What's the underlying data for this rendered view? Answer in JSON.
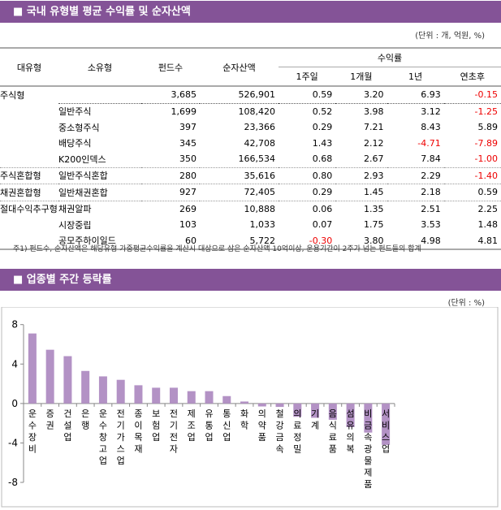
{
  "section1": {
    "title": "■ 국내 유형별 평균 수익률 및 순자산액",
    "unit": "(단위 : 개, 억원, %)",
    "headers": {
      "large": "대유형",
      "small": "소유형",
      "funds": "펀드수",
      "assets": "순자산액",
      "returns": "수익률",
      "w1": "1주일",
      "m1": "1개월",
      "y1": "1년",
      "ytd": "연초후"
    },
    "rows": [
      {
        "large": "주식형",
        "small": "",
        "funds": "3,685",
        "assets": "526,901",
        "w1": "0.59",
        "m1": "3.20",
        "y1": "6.93",
        "ytd": "-0.15"
      },
      {
        "large": "",
        "small": "일반주식",
        "funds": "1,699",
        "assets": "108,420",
        "w1": "0.52",
        "m1": "3.98",
        "y1": "3.12",
        "ytd": "-1.25"
      },
      {
        "large": "",
        "small": "중소형주식",
        "funds": "397",
        "assets": "23,366",
        "w1": "0.29",
        "m1": "7.21",
        "y1": "8.43",
        "ytd": "5.89"
      },
      {
        "large": "",
        "small": "배당주식",
        "funds": "345",
        "assets": "42,708",
        "w1": "1.43",
        "m1": "2.12",
        "y1": "-4.71",
        "ytd": "-7.89"
      },
      {
        "large": "",
        "small": "K200인덱스",
        "funds": "350",
        "assets": "166,534",
        "w1": "0.68",
        "m1": "2.67",
        "y1": "7.84",
        "ytd": "-1.00"
      },
      {
        "large": "주식혼합형",
        "small": "일반주식혼합",
        "funds": "280",
        "assets": "35,616",
        "w1": "0.80",
        "m1": "2.93",
        "y1": "2.29",
        "ytd": "-1.40"
      },
      {
        "large": "채권혼합형",
        "small": "일반채권혼합",
        "funds": "927",
        "assets": "72,405",
        "w1": "0.29",
        "m1": "1.45",
        "y1": "2.18",
        "ytd": "0.59"
      },
      {
        "large": "절대수익추구형",
        "small": "채권알파",
        "funds": "269",
        "assets": "10,888",
        "w1": "0.06",
        "m1": "1.35",
        "y1": "2.51",
        "ytd": "2.25"
      },
      {
        "large": "",
        "small": "시장중립",
        "funds": "103",
        "assets": "1,033",
        "w1": "0.07",
        "m1": "1.75",
        "y1": "3.53",
        "ytd": "1.48"
      },
      {
        "large": "",
        "small": "공모주하이일드",
        "funds": "60",
        "assets": "5,722",
        "w1": "-0.30",
        "m1": "3.80",
        "y1": "4.98",
        "ytd": "4.81"
      }
    ],
    "note": "주1) 펀드수, 순자산액은 해당유형 가중평균수익률을 계산시 대상으로 삼은 순자산액 10억이상, 운용기간이 2주가 넘는 펀드들의 합계"
  },
  "section2": {
    "title": "■ 업종별 주간 등락률",
    "unit": "(단위 : %)"
  },
  "chart_data": {
    "type": "bar",
    "ylim": [
      -8,
      8
    ],
    "yticks": [
      "8",
      "4",
      "0",
      "-4",
      "-8"
    ],
    "bar_color": "#b392c5",
    "categories": [
      "운수장비",
      "증권",
      "건설업",
      "은행",
      "운수창고업",
      "전기가스업",
      "종이목재",
      "보험업",
      "전기전자",
      "제조업",
      "유통업",
      "통신업",
      "화학",
      "의약품",
      "철강금속",
      "의료정밀",
      "기계",
      "음식료품",
      "섬유의복",
      "비금속광물제품",
      "서비스업"
    ],
    "values": [
      7.1,
      5.45,
      4.8,
      3.3,
      2.75,
      2.4,
      1.85,
      1.6,
      1.6,
      1.25,
      1.25,
      0.75,
      0.2,
      -0.3,
      -0.35,
      -1.35,
      -1.45,
      -1.65,
      -2.4,
      -2.95,
      -4.2
    ]
  }
}
